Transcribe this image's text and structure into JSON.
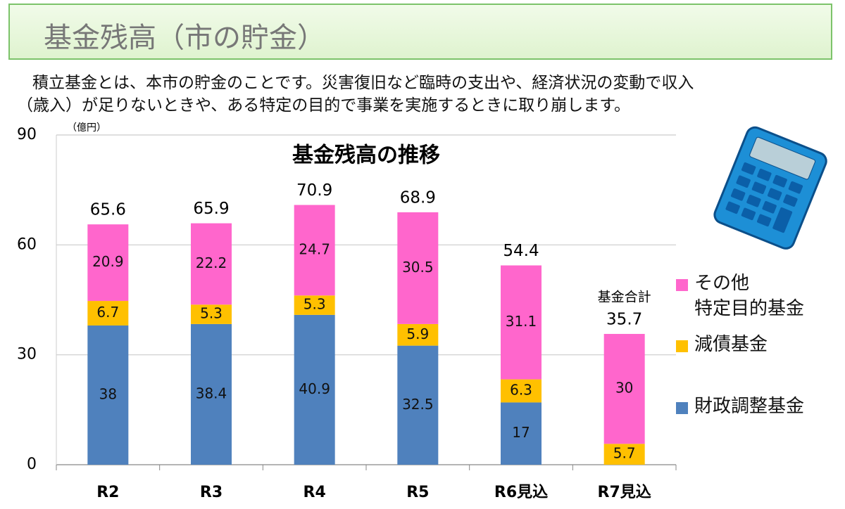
{
  "header": {
    "title": "基金残高（市の貯金）"
  },
  "description": [
    "積立基金とは、本市の貯金のことです。災害復旧など臨時の支出や、経済状況の変動で収入",
    "（歳入）が足りないときや、ある特定の目的で事業を実施するときに取り崩します。"
  ],
  "chart_data": {
    "type": "stacked_bar",
    "title": "基金残高の推移",
    "y_unit": "（億円）",
    "categories": [
      "R2",
      "R3",
      "R4",
      "R5",
      "R6見込",
      "R7見込"
    ],
    "series": [
      {
        "name": "財政調整基金",
        "color": "#4f81bd",
        "values": [
          38,
          38.4,
          40.9,
          32.5,
          17,
          null
        ]
      },
      {
        "name": "減債基金",
        "color": "#ffc000",
        "values": [
          6.7,
          5.3,
          5.3,
          5.9,
          6.3,
          5.7
        ]
      },
      {
        "name": "その他\n特定目的基金",
        "color": "#ff66cc",
        "values": [
          20.9,
          22.2,
          24.7,
          30.5,
          31.1,
          30
        ]
      }
    ],
    "totals": [
      65.6,
      65.9,
      70.9,
      68.9,
      54.4,
      35.7
    ],
    "total_annotation": "基金合計",
    "ylim": [
      0,
      90
    ],
    "yticks": [
      0,
      30,
      60,
      90
    ],
    "grid": true,
    "legend": "right"
  }
}
